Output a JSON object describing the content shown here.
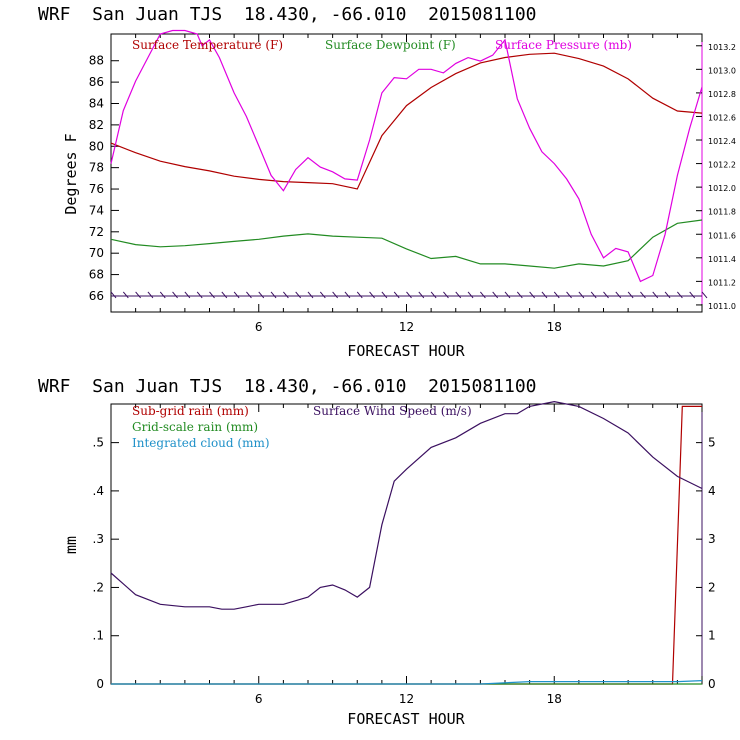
{
  "chart_data": [
    {
      "type": "line",
      "title": "WRF  San Juan TJS  18.430, -66.010  2015081100",
      "xlabel": "FORECAST HOUR",
      "ylabel": "Degrees F",
      "xlim": [
        0,
        24
      ],
      "ylim": [
        64.5,
        90.5
      ],
      "y2lim": [
        1010.94,
        1013.3
      ],
      "xticks": [
        "6",
        "12",
        "18"
      ],
      "yticks": [
        "66",
        "68",
        "70",
        "72",
        "74",
        "76",
        "78",
        "80",
        "82",
        "84",
        "86",
        "88"
      ],
      "y2ticks": [
        "1011.0",
        "1011.2",
        "1011.4",
        "1011.6",
        "1011.8",
        "1012.0",
        "1012.2",
        "1012.4",
        "1012.6",
        "1012.8",
        "1013.0",
        "1013.2"
      ],
      "legend_position": "top",
      "series": [
        {
          "name": "Surface Temperature (F)",
          "color": "#b00000",
          "axis": "left",
          "x": [
            0,
            1,
            2,
            3,
            4,
            5,
            6,
            7,
            8,
            9,
            10,
            11,
            12,
            13,
            14,
            15,
            16,
            17,
            18,
            19,
            20,
            21,
            22,
            23,
            24
          ],
          "y": [
            80.3,
            79.4,
            78.6,
            78.1,
            77.7,
            77.2,
            76.9,
            76.7,
            76.6,
            76.5,
            76.0,
            81.0,
            83.8,
            85.5,
            86.8,
            87.8,
            88.3,
            88.6,
            88.7,
            88.2,
            87.5,
            86.3,
            84.5,
            83.3,
            83.1
          ]
        },
        {
          "name": "Surface Dewpoint (F)",
          "color": "#228b22",
          "axis": "left",
          "x": [
            0,
            1,
            2,
            3,
            4,
            5,
            6,
            7,
            8,
            9,
            10,
            11,
            12,
            13,
            14,
            15,
            16,
            17,
            18,
            19,
            20,
            21,
            22,
            23,
            24
          ],
          "y": [
            71.3,
            70.8,
            70.6,
            70.7,
            70.9,
            71.1,
            71.3,
            71.6,
            71.8,
            71.6,
            71.5,
            71.4,
            70.4,
            69.5,
            69.7,
            69.0,
            69.0,
            68.8,
            68.6,
            69.0,
            68.8,
            69.3,
            71.5,
            72.8,
            73.1
          ]
        },
        {
          "name": "Surface Pressure (mb)",
          "color": "#e000e0",
          "axis": "right",
          "x": [
            0,
            0.5,
            1,
            1.5,
            2,
            2.5,
            3,
            3.5,
            3.7,
            4,
            4.4,
            5,
            5.5,
            6,
            6.5,
            7,
            7.5,
            8,
            8.5,
            9,
            9.5,
            10,
            10.5,
            11,
            11.5,
            12,
            12.5,
            13,
            13.5,
            14,
            14.5,
            15,
            15.5,
            16,
            16.5,
            17,
            17.5,
            18,
            18.5,
            19,
            19.5,
            20,
            20.5,
            21,
            21.5,
            22,
            22.5,
            23,
            23.5,
            24
          ],
          "y": [
            1012.2,
            1012.65,
            1012.9,
            1013.1,
            1013.3,
            1013.33,
            1013.33,
            1013.3,
            1013.2,
            1013.25,
            1013.1,
            1012.8,
            1012.6,
            1012.35,
            1012.1,
            1011.97,
            1012.15,
            1012.25,
            1012.17,
            1012.13,
            1012.07,
            1012.06,
            1012.4,
            1012.8,
            1012.93,
            1012.92,
            1013.0,
            1013.0,
            1012.97,
            1013.05,
            1013.1,
            1013.07,
            1013.12,
            1013.25,
            1012.75,
            1012.5,
            1012.3,
            1012.2,
            1012.07,
            1011.9,
            1011.6,
            1011.4,
            1011.48,
            1011.45,
            1011.2,
            1011.25,
            1011.6,
            1012.1,
            1012.5,
            1012.85
          ]
        }
      ],
      "wind_barbs_at_y": 66
    },
    {
      "type": "line",
      "title": "WRF  San Juan TJS  18.430, -66.010  2015081100",
      "xlabel": "FORECAST HOUR",
      "ylabel": "mm",
      "xlim": [
        0,
        24
      ],
      "ylim": [
        0,
        0.58
      ],
      "y2lim": [
        0,
        5.8
      ],
      "xticks": [
        "6",
        "12",
        "18"
      ],
      "yticks": [
        "0",
        ".1",
        ".2",
        ".3",
        ".4",
        ".5"
      ],
      "y2ticks": [
        "0",
        "1",
        "2",
        "3",
        "4",
        "5"
      ],
      "legend_position": "top-left",
      "series": [
        {
          "name": "Sub-grid rain (mm)",
          "color": "#b00000",
          "axis": "left",
          "x": [
            0,
            21,
            22.8,
            23.2,
            24
          ],
          "y": [
            0,
            0,
            0,
            0.575,
            0.575
          ]
        },
        {
          "name": "Grid-scale rain (mm)",
          "color": "#228b22",
          "axis": "left",
          "x": [
            0,
            24
          ],
          "y": [
            0,
            0
          ]
        },
        {
          "name": "Integrated cloud (mm)",
          "color": "#1e90c8",
          "axis": "left",
          "x": [
            0,
            15,
            17,
            23,
            24
          ],
          "y": [
            0,
            0,
            0.005,
            0.005,
            0.007
          ]
        },
        {
          "name": "Surface Wind Speed (m/s)",
          "color": "#3b1060",
          "axis": "right",
          "x": [
            0,
            1,
            2,
            3,
            4,
            4.5,
            5,
            5.5,
            6,
            7,
            8,
            8.5,
            9,
            9.5,
            10,
            10.5,
            11,
            11.5,
            12,
            13,
            14,
            15,
            16,
            16.5,
            17,
            18,
            19,
            20,
            21,
            22,
            23,
            24
          ],
          "y": [
            2.3,
            1.85,
            1.65,
            1.6,
            1.6,
            1.55,
            1.55,
            1.6,
            1.65,
            1.65,
            1.8,
            2.0,
            2.05,
            1.95,
            1.8,
            2.0,
            3.3,
            4.2,
            4.45,
            4.9,
            5.1,
            5.4,
            5.6,
            5.6,
            5.75,
            5.85,
            5.75,
            5.5,
            5.2,
            4.7,
            4.3,
            4.05
          ]
        }
      ]
    }
  ]
}
